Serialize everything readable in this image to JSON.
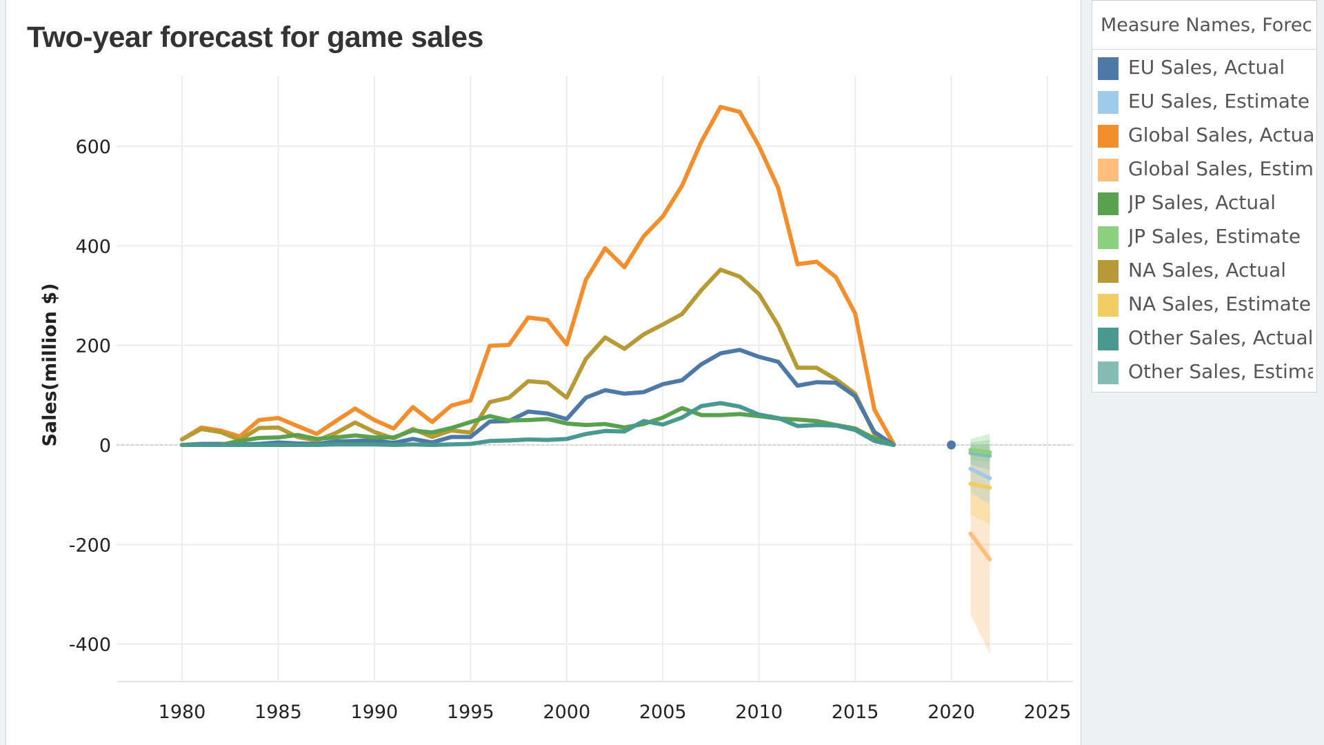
{
  "chart_data": {
    "type": "line",
    "title": "Two-year forecast for game sales",
    "ylabel": "Sales(million $)",
    "xlabel": "",
    "xlim": [
      1977,
      2026
    ],
    "ylim": [
      -480,
      740
    ],
    "x_ticks": [
      1980,
      1985,
      1990,
      1995,
      2000,
      2005,
      2010,
      2015,
      2020,
      2025
    ],
    "y_ticks": [
      -400,
      -200,
      0,
      200,
      400,
      600
    ],
    "grid": true,
    "legend_position": "right",
    "x": [
      1980,
      1981,
      1982,
      1983,
      1984,
      1985,
      1986,
      1987,
      1988,
      1989,
      1990,
      1991,
      1992,
      1993,
      1994,
      1995,
      1996,
      1997,
      1998,
      1999,
      2000,
      2001,
      2002,
      2003,
      2004,
      2005,
      2006,
      2007,
      2008,
      2009,
      2010,
      2011,
      2012,
      2013,
      2014,
      2015,
      2016,
      2017
    ],
    "series": [
      {
        "name": "Global Sales, Actual",
        "color": "#f28e2b",
        "values": [
          11,
          35,
          29,
          17,
          50,
          54,
          38,
          22,
          48,
          73,
          50,
          33,
          76,
          46,
          79,
          89,
          199,
          201,
          256,
          251,
          202,
          332,
          395,
          357,
          419,
          459,
          521,
          609,
          679,
          669,
          600,
          516,
          363,
          368,
          337,
          264,
          71,
          2
        ]
      },
      {
        "name": "NA Sales, Actual",
        "color": "#b59a35",
        "values": [
          11,
          32,
          26,
          10,
          34,
          35,
          16,
          9,
          24,
          45,
          26,
          13,
          32,
          16,
          29,
          25,
          86,
          95,
          128,
          125,
          95,
          173,
          216,
          193,
          222,
          242,
          263,
          311,
          352,
          338,
          303,
          240,
          155,
          155,
          132,
          103,
          22,
          1
        ]
      },
      {
        "name": "EU Sales, Actual",
        "color": "#4e79a7",
        "values": [
          0,
          2,
          2,
          1,
          2,
          5,
          3,
          2,
          7,
          8,
          9,
          4,
          12,
          5,
          16,
          16,
          47,
          48,
          67,
          63,
          52,
          95,
          110,
          103,
          106,
          122,
          130,
          162,
          184,
          191,
          177,
          167,
          119,
          126,
          125,
          98,
          26,
          0
        ]
      },
      {
        "name": "JP Sales, Actual",
        "color": "#59a14f",
        "values": [
          0,
          0,
          0,
          8,
          14,
          15,
          20,
          12,
          15,
          19,
          15,
          15,
          29,
          25,
          34,
          46,
          58,
          49,
          50,
          52,
          43,
          40,
          42,
          35,
          42,
          55,
          74,
          60,
          60,
          62,
          58,
          53,
          51,
          48,
          40,
          33,
          13,
          0
        ]
      },
      {
        "name": "Other Sales, Actual",
        "color": "#4a9990",
        "values": [
          0,
          0,
          0,
          0,
          0,
          0,
          0,
          0,
          1,
          1,
          1,
          0,
          1,
          0,
          1,
          2,
          8,
          9,
          11,
          10,
          12,
          22,
          28,
          27,
          48,
          41,
          55,
          78,
          84,
          77,
          61,
          54,
          38,
          40,
          39,
          30,
          8,
          0
        ]
      }
    ],
    "marker": {
      "name": "EU Sales, Actual",
      "color": "#4e79a7",
      "x": 2020,
      "y": 0
    },
    "estimates": [
      {
        "name": "Global Sales, Estimate",
        "color": "#ffbe7d",
        "x": [
          2021,
          2022
        ],
        "values": [
          -178,
          -230
        ],
        "band": [
          [
            -340,
            0
          ],
          [
            -420,
            0
          ]
        ]
      },
      {
        "name": "NA Sales, Estimate",
        "color": "#f1ce63",
        "x": [
          2021,
          2022
        ],
        "values": [
          -78,
          -86
        ],
        "band": [
          [
            -140,
            0
          ],
          [
            -160,
            0
          ]
        ]
      },
      {
        "name": "EU Sales, Estimate",
        "color": "#a0cbe8",
        "x": [
          2021,
          2022
        ],
        "values": [
          -48,
          -67
        ],
        "band": [
          [
            -95,
            0
          ],
          [
            -120,
            0
          ]
        ]
      },
      {
        "name": "Other Sales, Estimate",
        "color": "#86bcb6",
        "x": [
          2021,
          2022
        ],
        "values": [
          -16,
          -22
        ],
        "band": [
          [
            -40,
            5
          ],
          [
            -50,
            10
          ]
        ]
      },
      {
        "name": "JP Sales, Estimate",
        "color": "#8cd17d",
        "x": [
          2021,
          2022
        ],
        "values": [
          -10,
          -15
        ],
        "band": [
          [
            -30,
            12
          ],
          [
            -35,
            22
          ]
        ]
      }
    ]
  },
  "legend": {
    "title": "Measure Names, Forec...",
    "items": [
      {
        "label": "EU Sales, Actual",
        "color": "#4e79a7"
      },
      {
        "label": "EU Sales, Estimate",
        "color": "#a0cbe8"
      },
      {
        "label": "Global Sales, Actual",
        "color": "#f28e2b"
      },
      {
        "label": "Global Sales, Estima..",
        "color": "#ffbe7d"
      },
      {
        "label": "JP Sales, Actual",
        "color": "#59a14f"
      },
      {
        "label": "JP Sales, Estimate",
        "color": "#8cd17d"
      },
      {
        "label": "NA Sales, Actual",
        "color": "#b59a35"
      },
      {
        "label": "NA Sales, Estimate",
        "color": "#f1ce63"
      },
      {
        "label": "Other Sales, Actual",
        "color": "#4a9990"
      },
      {
        "label": "Other Sales, Estimate",
        "color": "#86bcb6"
      }
    ]
  }
}
